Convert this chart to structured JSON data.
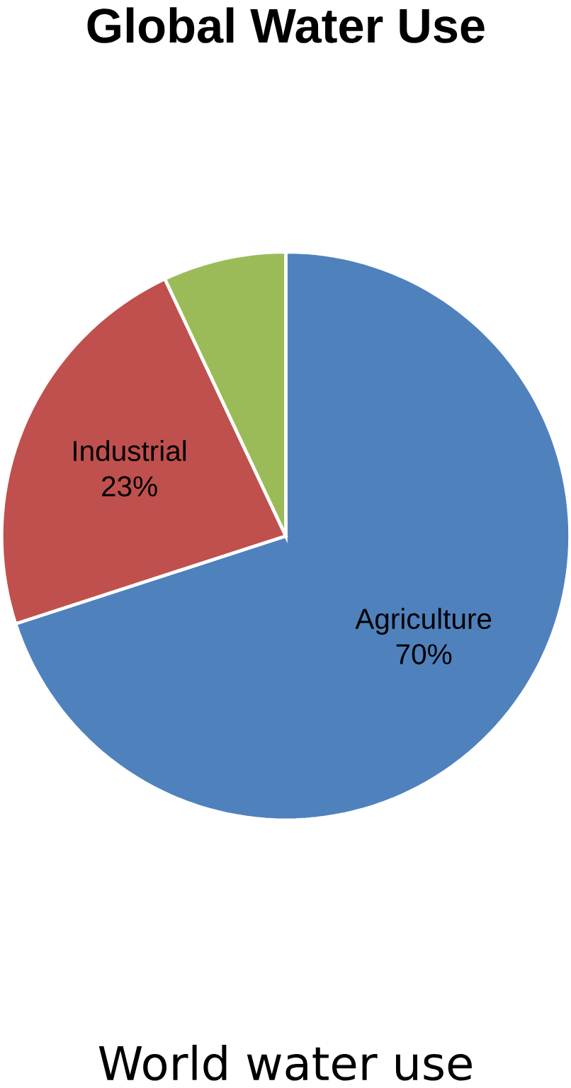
{
  "chart_data": {
    "type": "pie",
    "title": "Global Water Use",
    "annotations": [
      "World water use"
    ],
    "categories": [
      "Agriculture",
      "Industrial",
      null
    ],
    "values": [
      70,
      23,
      7
    ],
    "colors": [
      "#4f81bd",
      "#c0504d",
      "#9bbb59"
    ],
    "value_labels": [
      "70%",
      "23%",
      null
    ]
  }
}
